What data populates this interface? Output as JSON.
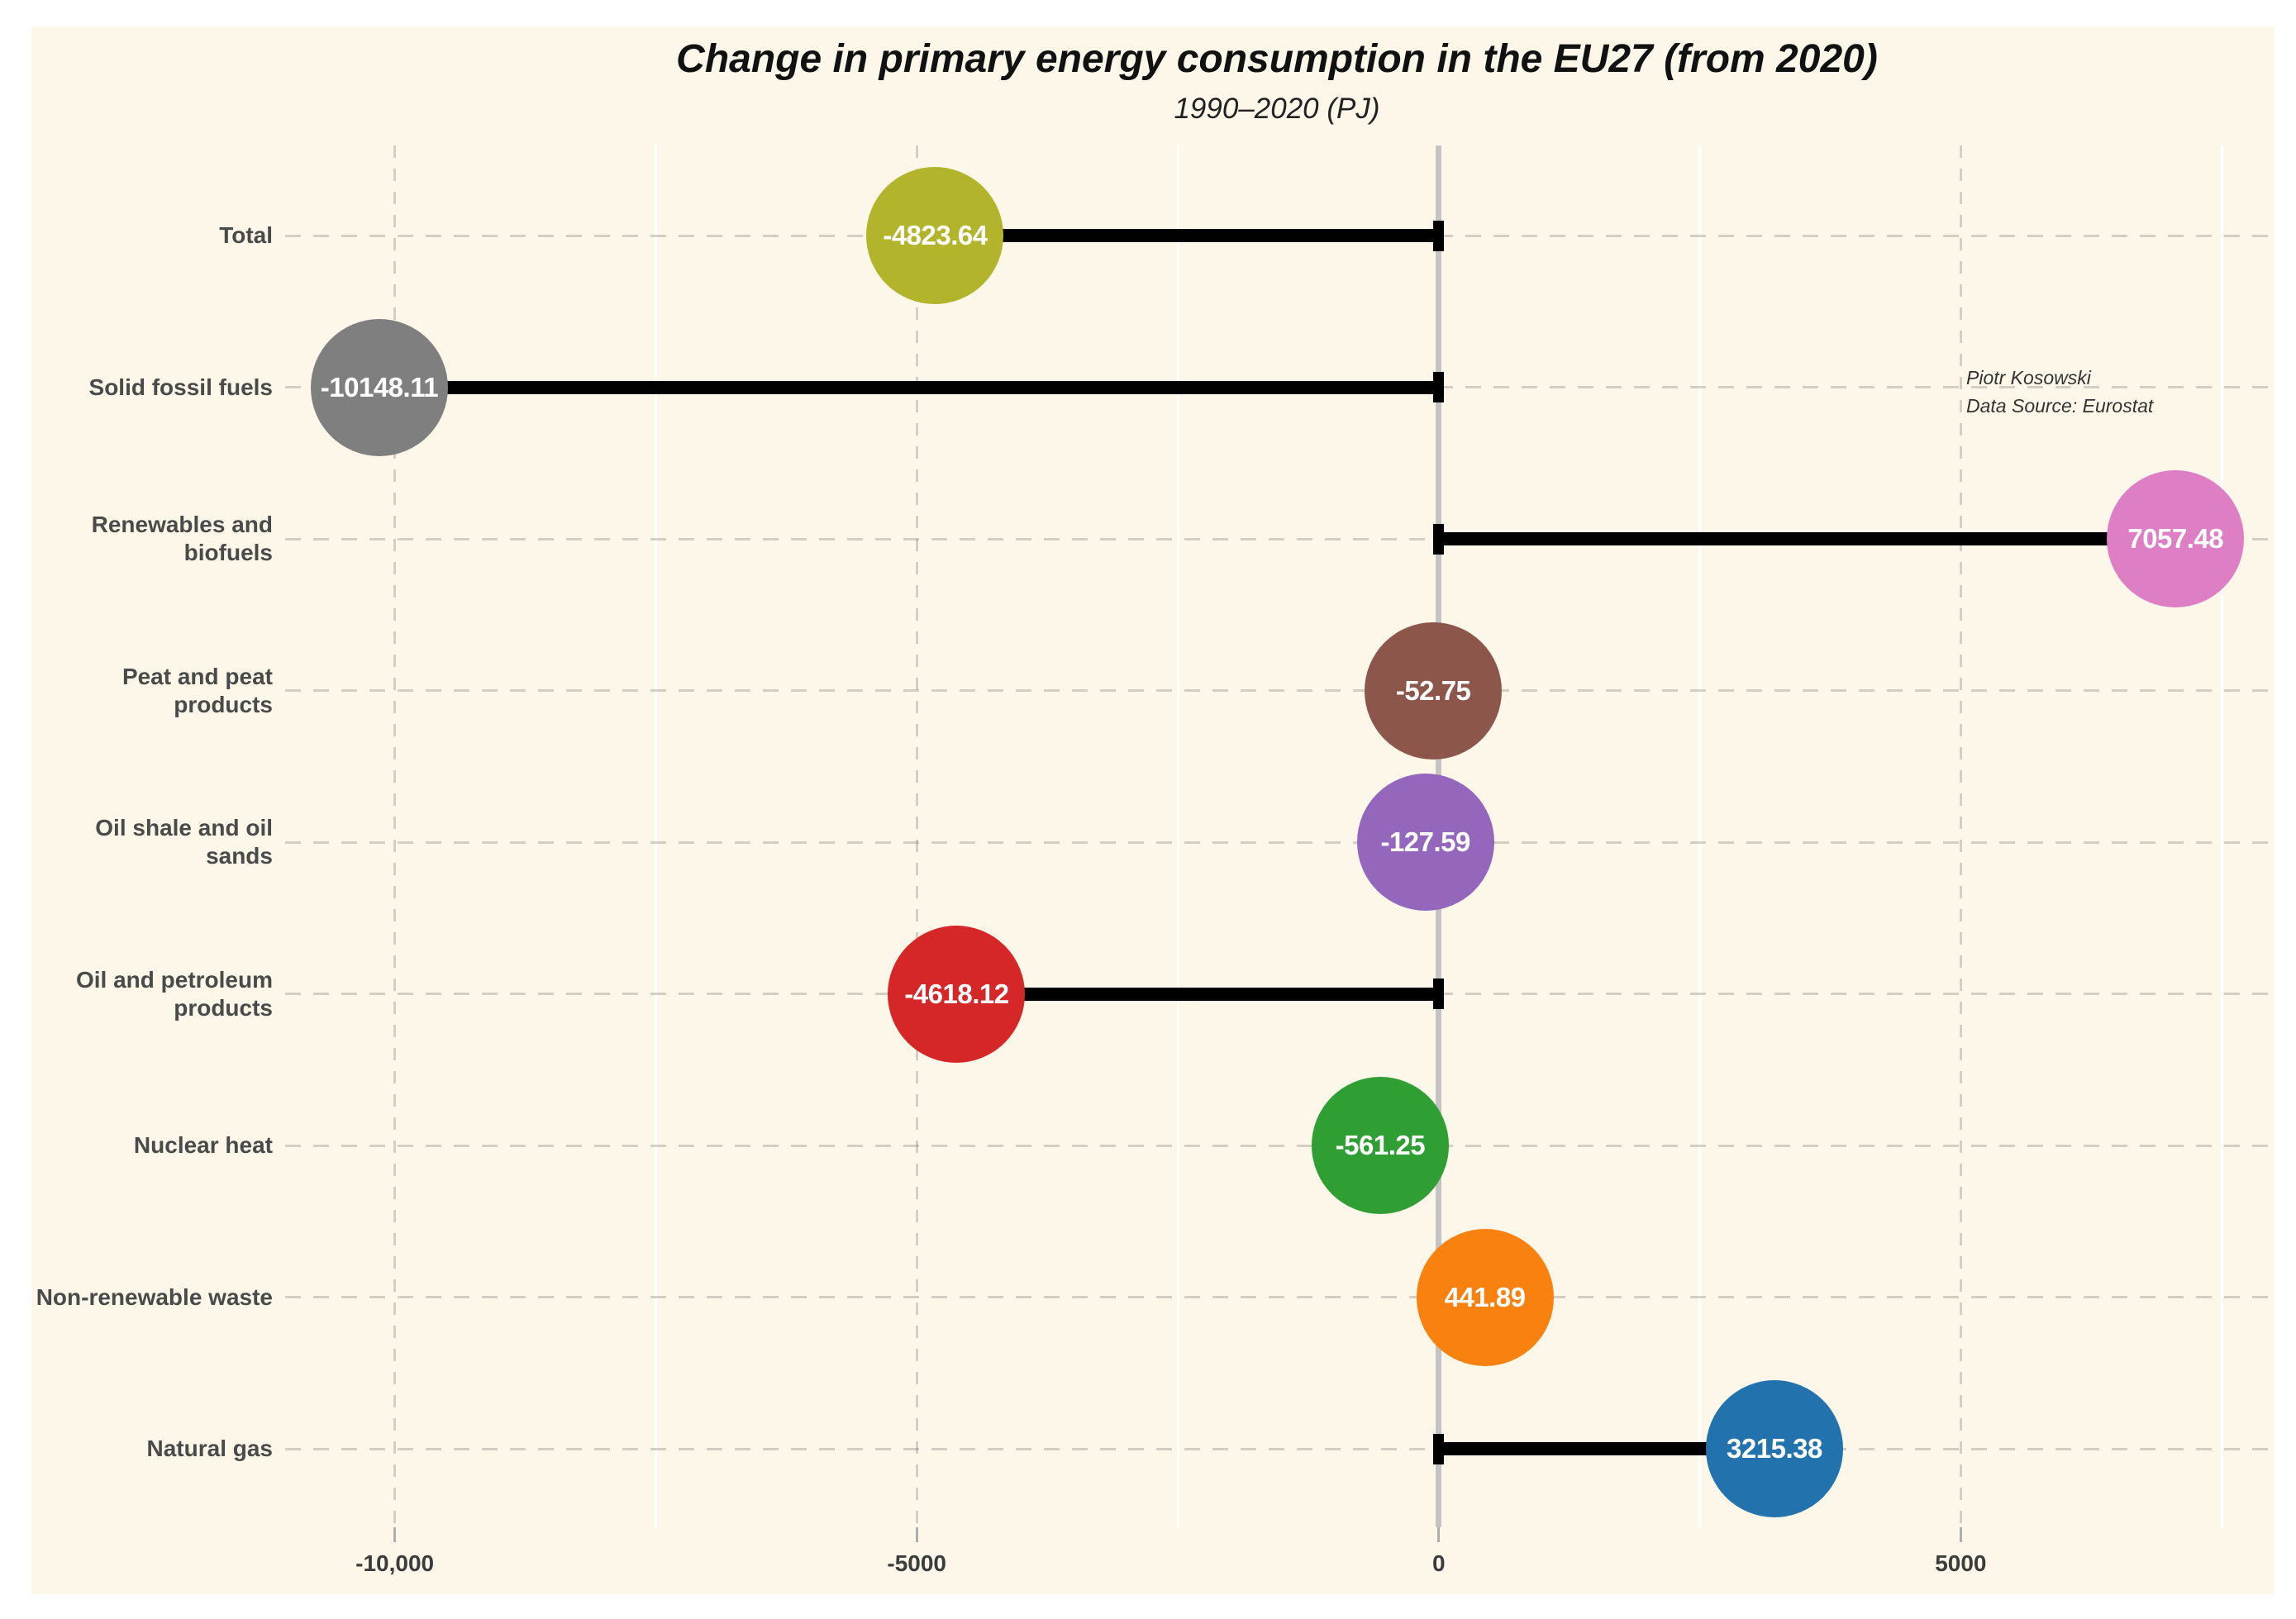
{
  "figure": {
    "background": "#ffffff",
    "panel_background": "#fdf7e9",
    "zero_line_color": "#c3c3c3",
    "stem_color": "#000000",
    "grid_dash_color": "rgba(110,110,110,0.30)",
    "grid_minor_color": "rgba(255,255,255,0.90)",
    "tick_mark_color": "#adadad"
  },
  "annotation": {
    "line1": "Piotr Kosowski",
    "line2": "Data Source: Eurostat"
  },
  "chart_data": {
    "type": "bar",
    "variant": "horizontal-lollipop",
    "title": "Change in primary energy consumption in the EU27 (from 2020)",
    "subtitle": "1990–2020 (PJ)",
    "xlabel": "",
    "ylabel": "",
    "grid": true,
    "xlim": [
      -11050,
      7950
    ],
    "categories": [
      "Total",
      "Solid fossil fuels",
      "Renewables and\nbiofuels",
      "Peat and peat\nproducts",
      "Oil shale and oil\nsands",
      "Oil and petroleum\nproducts",
      "Nuclear heat",
      "Non-renewable waste",
      "Natural gas"
    ],
    "values": [
      -4823.64,
      -10148.11,
      7057.48,
      -52.75,
      -127.59,
      -4618.12,
      -561.25,
      441.89,
      3215.38
    ],
    "value_labels": [
      "-4823.64",
      "-10148.11",
      "7057.48",
      "-52.75",
      "-127.59",
      "-4618.12",
      "-561.25",
      "441.89",
      "3215.38"
    ],
    "colors": [
      "#b2b42c",
      "#7f7f7f",
      "#de7ec4",
      "#8c564b",
      "#9467bd",
      "#d62728",
      "#2f9e33",
      "#f8810f",
      "#2272ae"
    ],
    "x_ticks": [
      {
        "value": -10000,
        "label": "-10,000"
      },
      {
        "value": -5000,
        "label": "-5000"
      },
      {
        "value": 0,
        "label": "0"
      },
      {
        "value": 5000,
        "label": "5000"
      }
    ],
    "x_minor_ticks": [
      -7500,
      -2500,
      2500,
      7500
    ],
    "legend": null
  }
}
